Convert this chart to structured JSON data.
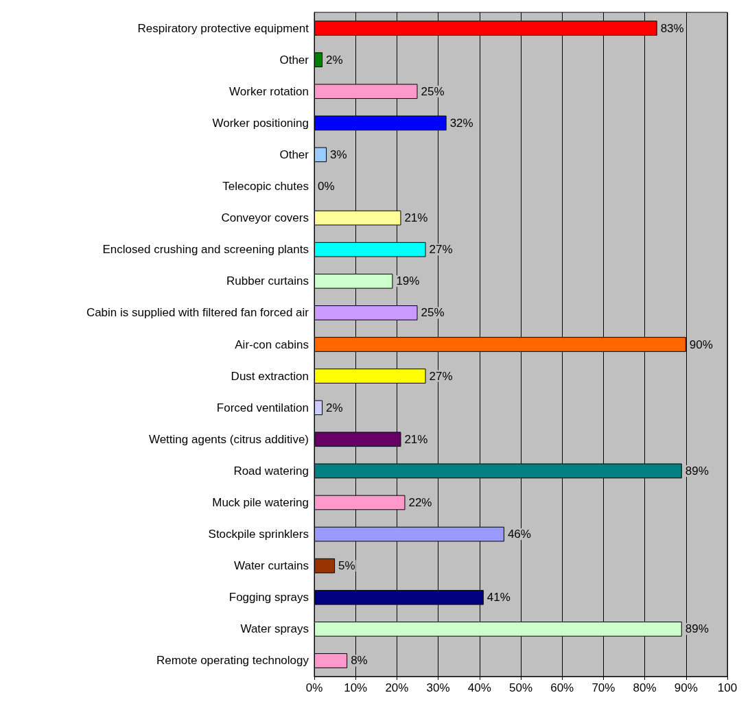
{
  "chart_data": {
    "type": "bar",
    "orientation": "horizontal",
    "categories": [
      "Respiratory protective equipment",
      "Other",
      "Worker rotation",
      "Worker positioning",
      "Other",
      "Telecopic chutes",
      "Conveyor covers",
      "Enclosed crushing and screening plants",
      "Rubber curtains",
      "Cabin is supplied with filtered fan forced air",
      "Air-con cabins",
      "Dust extraction",
      "Forced ventilation",
      "Wetting agents (citrus additive)",
      "Road watering",
      "Muck pile watering",
      "Stockpile sprinklers",
      "Water curtains",
      "Fogging sprays",
      "Water sprays",
      "Remote operating technology"
    ],
    "values": [
      83,
      2,
      25,
      32,
      3,
      0,
      21,
      27,
      19,
      25,
      90,
      27,
      2,
      21,
      89,
      22,
      46,
      5,
      41,
      89,
      8
    ],
    "value_labels": [
      "83%",
      "2%",
      "25%",
      "32%",
      "3%",
      "0%",
      "21%",
      "27%",
      "19%",
      "25%",
      "90%",
      "27%",
      "2%",
      "21%",
      "89%",
      "22%",
      "46%",
      "5%",
      "41%",
      "89%",
      "8%"
    ],
    "colors": [
      "#ff0000",
      "#008000",
      "#ff99cc",
      "#0000ff",
      "#99ccff",
      "#ffffff",
      "#ffff99",
      "#00ffff",
      "#ccffcc",
      "#cc99ff",
      "#ff6600",
      "#ffff00",
      "#ccccff",
      "#660066",
      "#008080",
      "#ff99cc",
      "#9999ff",
      "#993300",
      "#000080",
      "#ccffcc",
      "#ff99cc"
    ],
    "xlim": [
      0,
      100
    ],
    "xticks": [
      {
        "value": 0,
        "label": "0%"
      },
      {
        "value": 10,
        "label": "10%"
      },
      {
        "value": 20,
        "label": "20%"
      },
      {
        "value": 30,
        "label": "30%"
      },
      {
        "value": 40,
        "label": "40%"
      },
      {
        "value": 50,
        "label": "50%"
      },
      {
        "value": 60,
        "label": "60%"
      },
      {
        "value": 70,
        "label": "70%"
      },
      {
        "value": 80,
        "label": "80%"
      },
      {
        "value": 90,
        "label": "90%"
      },
      100
    ],
    "grid": "x"
  }
}
